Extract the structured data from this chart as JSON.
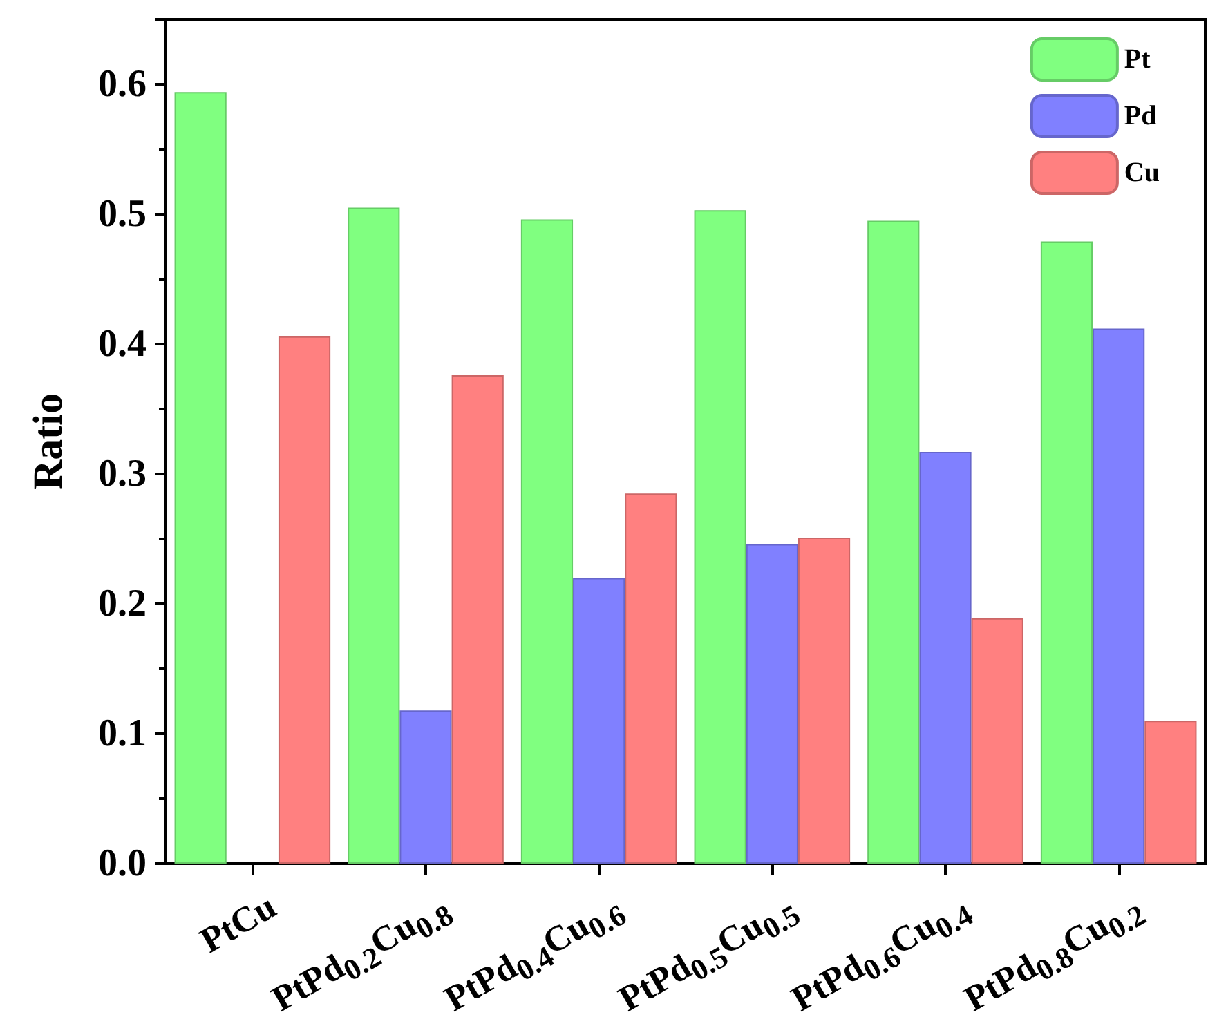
{
  "chart_data": {
    "type": "bar",
    "ylabel": "Ratio",
    "categories": [
      "PtCu",
      "PtPd$_{0.2}$Cu$_{0.8}$",
      "PtPd$_{0.4}$Cu$_{0.6}$",
      "PtPd$_{0.5}$Cu$_{0.5}$",
      "PtPd$_{0.6}$Cu$_{0.4}$",
      "PtPd$_{0.8}$Cu$_{0.2}$"
    ],
    "series": [
      {
        "name": "Pt",
        "color": "#80ff80",
        "values": [
          0.594,
          0.505,
          0.496,
          0.503,
          0.495,
          0.479
        ]
      },
      {
        "name": "Pd",
        "color": "#8080ff",
        "values": [
          null,
          0.118,
          0.22,
          0.246,
          0.317,
          0.412
        ]
      },
      {
        "name": "Cu",
        "color": "#ff8080",
        "values": [
          0.406,
          0.376,
          0.285,
          0.251,
          0.189,
          0.11
        ]
      }
    ],
    "ylim": [
      0,
      0.65
    ],
    "yticks": [
      {
        "value": 0,
        "label": "0.0"
      },
      {
        "value": 0.1,
        "label": "0.1"
      },
      {
        "value": 0.2,
        "label": "0.2"
      },
      {
        "value": 0.3,
        "label": "0.3"
      },
      {
        "value": 0.4,
        "label": "0.4"
      },
      {
        "value": 0.5,
        "label": "0.5"
      },
      {
        "value": 0.6,
        "label": "0.6"
      }
    ],
    "grid": false,
    "legend": "top right"
  }
}
